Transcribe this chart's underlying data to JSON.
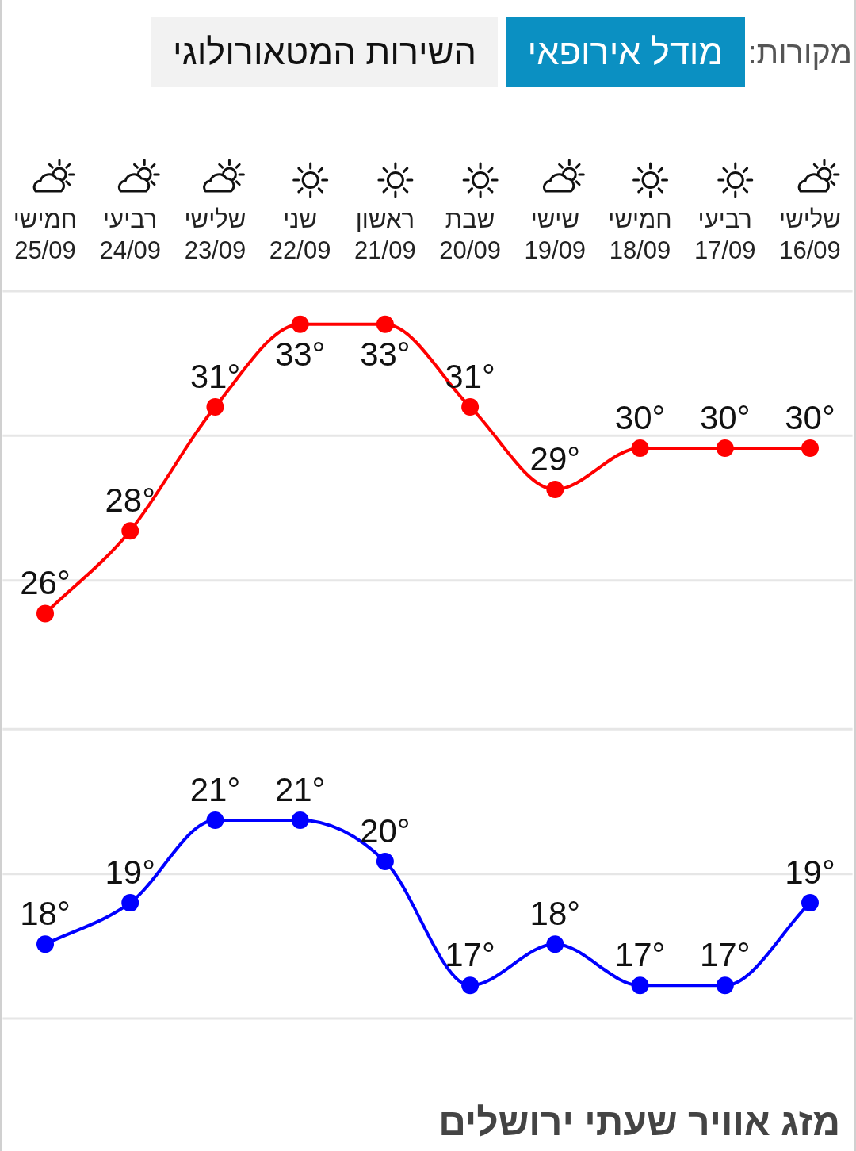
{
  "chart_data": {
    "type": "line",
    "categories": [
      "חמישי 25/09",
      "רביעי 24/09",
      "שלישי 23/09",
      "שני 22/09",
      "ראשון 21/09",
      "שבת 20/09",
      "שישי 19/09",
      "חמישי 18/09",
      "רביעי 17/09",
      "שלישי 16/09"
    ],
    "series": [
      {
        "color": "#ff0000",
        "values": [
          26,
          28,
          31,
          33,
          33,
          31,
          29,
          30,
          30,
          30
        ],
        "value_labels": [
          "26°",
          "28°",
          "31°",
          "33°",
          "33°",
          "31°",
          "29°",
          "30°",
          "30°",
          "30°"
        ]
      },
      {
        "color": "#0000ff",
        "values": [
          18,
          19,
          21,
          21,
          20,
          17,
          18,
          17,
          17,
          19
        ],
        "value_labels": [
          "18°",
          "19°",
          "21°",
          "21°",
          "20°",
          "17°",
          "18°",
          "17°",
          "17°",
          "19°"
        ]
      }
    ],
    "ylim": [
      16.2,
      33.8
    ],
    "yticks": [
      {
        "value": 16.2,
        "label": null
      },
      {
        "value": 19.7,
        "label": null
      },
      {
        "value": 23.2,
        "label": null
      },
      {
        "value": 26.8,
        "label": null
      },
      {
        "value": 30.3,
        "label": null
      },
      {
        "value": 33.8,
        "label": null
      }
    ],
    "grid": "y",
    "tick_labels": "x",
    "marker": "circle",
    "line_style": "solid",
    "annotations": [
      "מקורות:",
      "מודל אירופאי",
      "השירות המטאורולוגי",
      "מזג אוויר שעתי ירושלים"
    ]
  }
}
